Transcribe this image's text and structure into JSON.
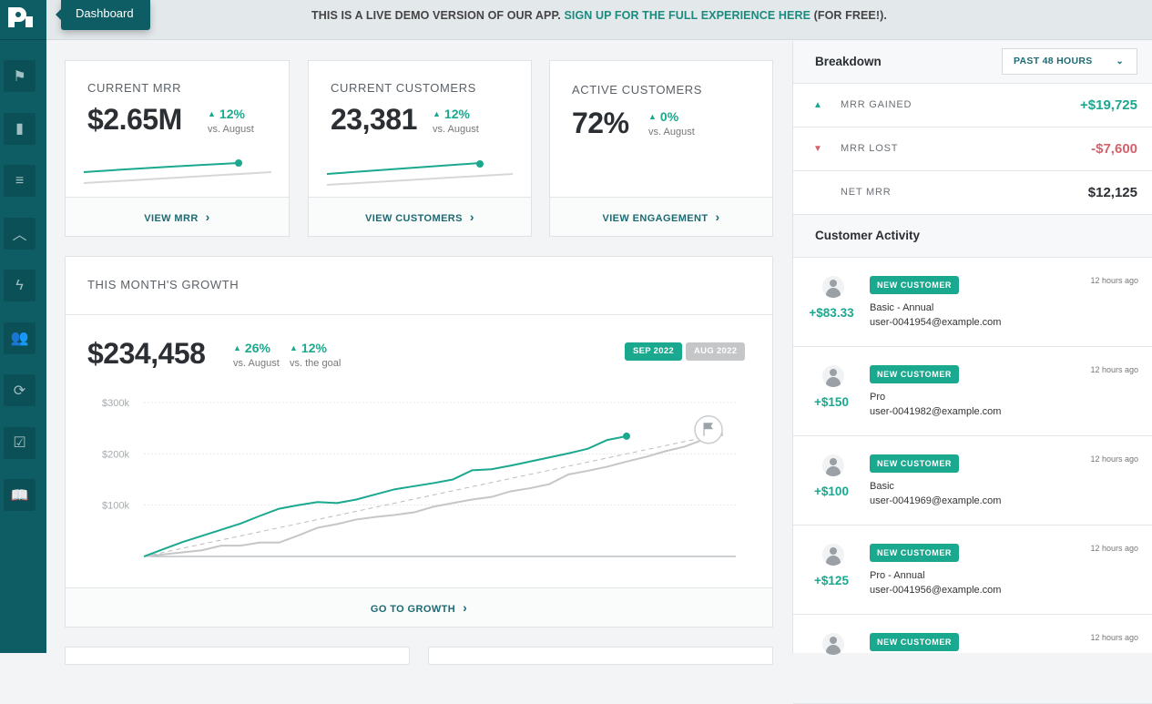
{
  "sidebar": {
    "logo_text": "P",
    "tooltip": "Dashboard",
    "items": [
      {
        "icon": "flag-icon",
        "glyph": "⚑"
      },
      {
        "icon": "bar-chart-icon",
        "glyph": "▮"
      },
      {
        "icon": "filter-icon",
        "glyph": "≡"
      },
      {
        "icon": "peak-icon",
        "glyph": "︿"
      },
      {
        "icon": "lightning-icon",
        "glyph": "ϟ"
      },
      {
        "icon": "users-icon",
        "glyph": "👥"
      },
      {
        "icon": "refresh-icon",
        "glyph": "⟳"
      },
      {
        "icon": "calendar-check-icon",
        "glyph": "☑"
      },
      {
        "icon": "book-icon",
        "glyph": "📖"
      }
    ]
  },
  "banner": {
    "text": "THIS IS A LIVE DEMO VERSION OF OUR APP.",
    "link": "SIGN UP FOR THE FULL EXPERIENCE HERE",
    "suffix": "(FOR FREE!)."
  },
  "kpis": [
    {
      "label": "CURRENT MRR",
      "value": "$2.65M",
      "delta": "12%",
      "vs": "vs. August",
      "link": "VIEW MRR"
    },
    {
      "label": "CURRENT CUSTOMERS",
      "value": "23,381",
      "delta": "12%",
      "vs": "vs. August",
      "link": "VIEW CUSTOMERS"
    },
    {
      "label": "ACTIVE CUSTOMERS",
      "value": "72%",
      "delta": "0%",
      "vs": "vs. August",
      "link": "VIEW ENGAGEMENT"
    }
  ],
  "growth": {
    "title": "THIS MONTH'S GROWTH",
    "value": "$234,458",
    "delta1": "26%",
    "vs1": "vs. August",
    "delta2": "12%",
    "vs2": "vs. the goal",
    "tag_current": "SEP 2022",
    "tag_previous": "AUG 2022",
    "link": "GO TO GROWTH"
  },
  "colors": {
    "accent": "#1aa88e",
    "sidebar": "#0f5d64",
    "negative": "#d4626b",
    "previous": "#c4c6c8"
  },
  "chart_data": {
    "type": "line",
    "x_unit": "day of month",
    "yticks": [
      "$100k",
      "$200k",
      "$300k"
    ],
    "ylim": [
      0,
      300
    ],
    "grid": true,
    "series": [
      {
        "name": "SEP 2022",
        "color": "#1aa88e",
        "x": [
          1,
          2,
          3,
          4,
          5,
          6,
          7,
          8,
          9,
          10,
          11,
          12,
          13,
          14,
          15,
          16,
          17,
          18,
          19,
          20,
          21,
          22,
          23,
          24,
          25,
          26
        ],
        "y": [
          0,
          14,
          28,
          40,
          52,
          64,
          79,
          93,
          100,
          106,
          104,
          111,
          121,
          131,
          137,
          143,
          150,
          168,
          170,
          177,
          185,
          193,
          201,
          210,
          227,
          234.458
        ]
      },
      {
        "name": "AUG 2022",
        "color": "#c4c6c8",
        "x": [
          1,
          2,
          3,
          4,
          5,
          6,
          7,
          8,
          9,
          10,
          11,
          12,
          13,
          14,
          15,
          16,
          17,
          18,
          19,
          20,
          21,
          22,
          23,
          24,
          25,
          26,
          27,
          28,
          29,
          30,
          31
        ],
        "y": [
          0,
          4,
          8,
          12,
          21,
          21,
          27,
          27,
          41,
          56,
          63,
          72,
          77,
          81,
          86,
          97,
          104,
          111,
          116,
          127,
          133,
          141,
          160,
          167,
          175,
          185,
          194,
          205,
          214,
          228,
          237
        ]
      },
      {
        "type": "goal",
        "x": [
          1,
          31
        ],
        "y": [
          0,
          240
        ]
      }
    ]
  },
  "breakdown": {
    "title": "Breakdown",
    "range": "PAST 48 HOURS",
    "rows": [
      {
        "label": "MRR GAINED",
        "value": "+$19,725",
        "dir": "up"
      },
      {
        "label": "MRR LOST",
        "value": "-$7,600",
        "dir": "down"
      },
      {
        "label": "NET MRR",
        "value": "$12,125",
        "dir": "none"
      }
    ]
  },
  "activity": {
    "title": "Customer Activity",
    "items": [
      {
        "amount": "+$83.33",
        "badge": "NEW CUSTOMER",
        "plan": "Basic - Annual",
        "email": "user-0041954@example.com",
        "time": "12 hours ago"
      },
      {
        "amount": "+$150",
        "badge": "NEW CUSTOMER",
        "plan": "Pro",
        "email": "user-0041982@example.com",
        "time": "12 hours ago"
      },
      {
        "amount": "+$100",
        "badge": "NEW CUSTOMER",
        "plan": "Basic",
        "email": "user-0041969@example.com",
        "time": "12 hours ago"
      },
      {
        "amount": "+$125",
        "badge": "NEW CUSTOMER",
        "plan": "Pro - Annual",
        "email": "user-0041956@example.com",
        "time": "12 hours ago"
      },
      {
        "amount": "",
        "badge": "NEW CUSTOMER",
        "plan": "",
        "email": "",
        "time": "12 hours ago"
      }
    ]
  }
}
